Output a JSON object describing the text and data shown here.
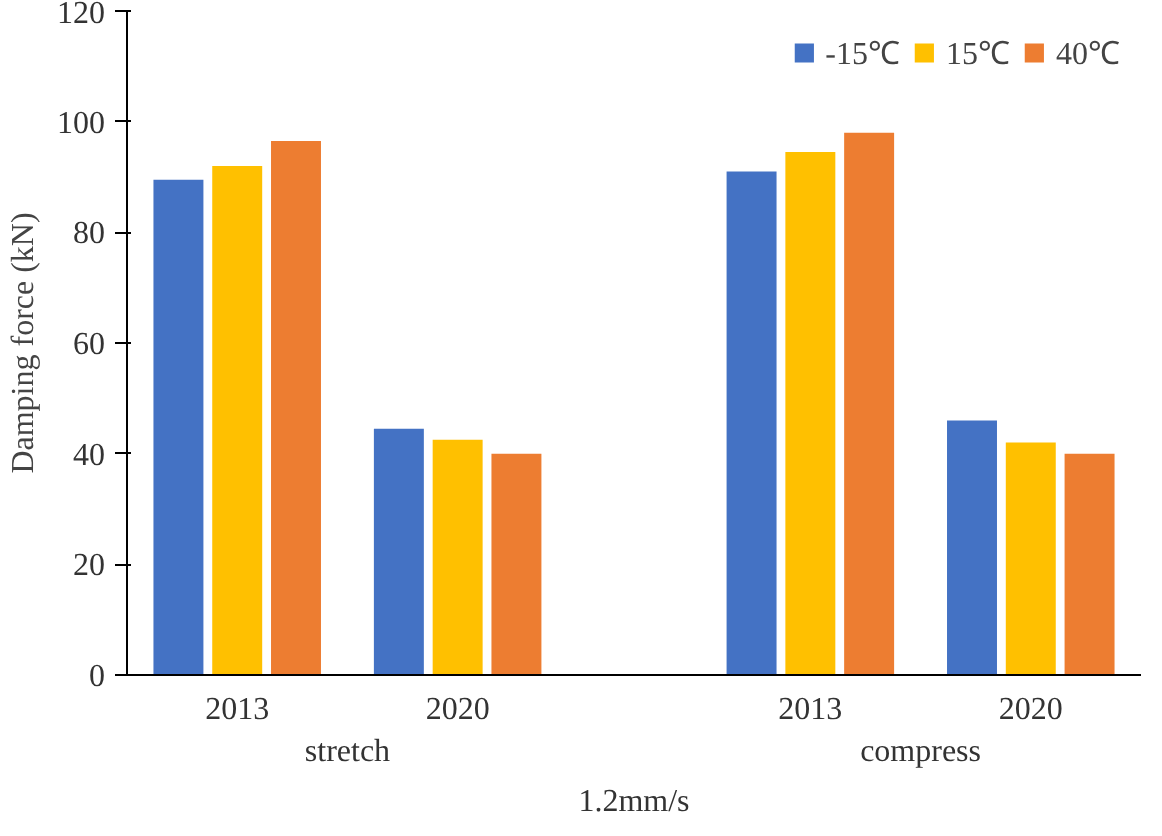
{
  "chart_data": {
    "type": "bar",
    "ylabel": "Damping force (kN)",
    "xlabel": "1.2mm/s",
    "categories": [
      "2013",
      "2020",
      "2013",
      "2020"
    ],
    "annotations": [
      "stretch",
      "compress"
    ],
    "series": [
      {
        "name": "-15℃",
        "color": "#4472c4",
        "values": [
          89.5,
          44.5,
          91,
          46
        ]
      },
      {
        "name": "15℃",
        "color": "#ffc000",
        "values": [
          92,
          42.5,
          94.5,
          42
        ]
      },
      {
        "name": "40℃",
        "color": "#ed7d31",
        "values": [
          96.5,
          40,
          98,
          40
        ]
      }
    ],
    "ylim": [
      0,
      120
    ],
    "yticks": [
      0,
      20,
      40,
      60,
      80,
      100,
      120
    ],
    "legend": "top right",
    "grid": false
  }
}
